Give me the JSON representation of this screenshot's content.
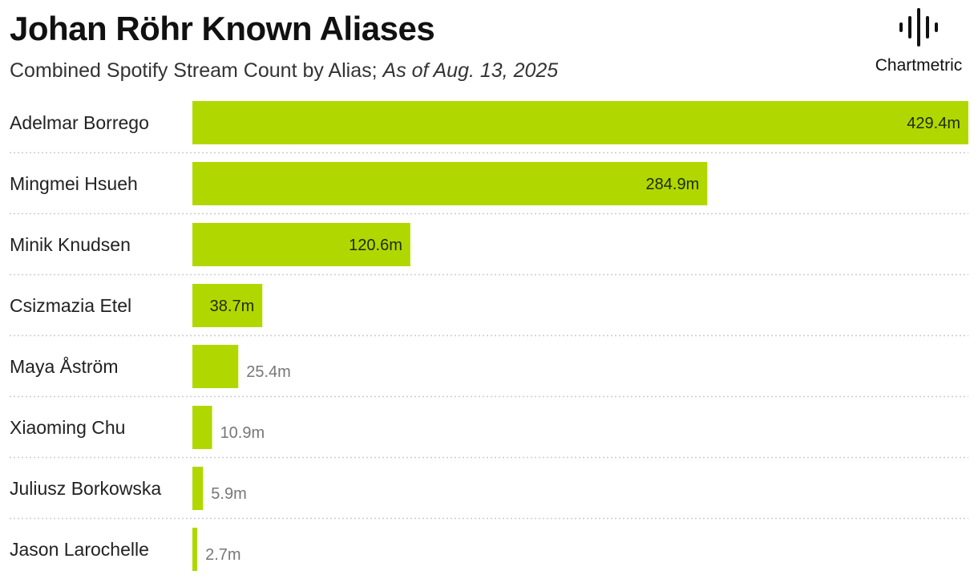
{
  "title": "Johan Röhr Known Aliases",
  "subtitle_main": "Combined Spotify Stream Count by Alias;",
  "subtitle_date": "As of Aug. 13, 2025",
  "logo": {
    "text": "Chartmetric",
    "icon": "waveform-icon"
  },
  "colors": {
    "bar": "#b0d800",
    "value_inside": "#1f2a00",
    "value_outside": "#777777",
    "divider": "#cccccc"
  },
  "chart_data": {
    "type": "bar",
    "orientation": "horizontal",
    "categories": [
      "Adelmar Borrego",
      "Mingmei Hsueh",
      "Minik Knudsen",
      "Csizmazia Etel",
      "Maya Åström",
      "Xiaoming Chu",
      "Juliusz Borkowska",
      "Jason Larochelle"
    ],
    "values": [
      429.4,
      284.9,
      120.6,
      38.7,
      25.4,
      10.9,
      5.9,
      2.7
    ],
    "value_labels": [
      "429.4m",
      "284.9m",
      "120.6m",
      "38.7m",
      "25.4m",
      "10.9m",
      "5.9m",
      "2.7m"
    ],
    "xlim": [
      0,
      429.4
    ],
    "grid": false,
    "legend": "none"
  }
}
